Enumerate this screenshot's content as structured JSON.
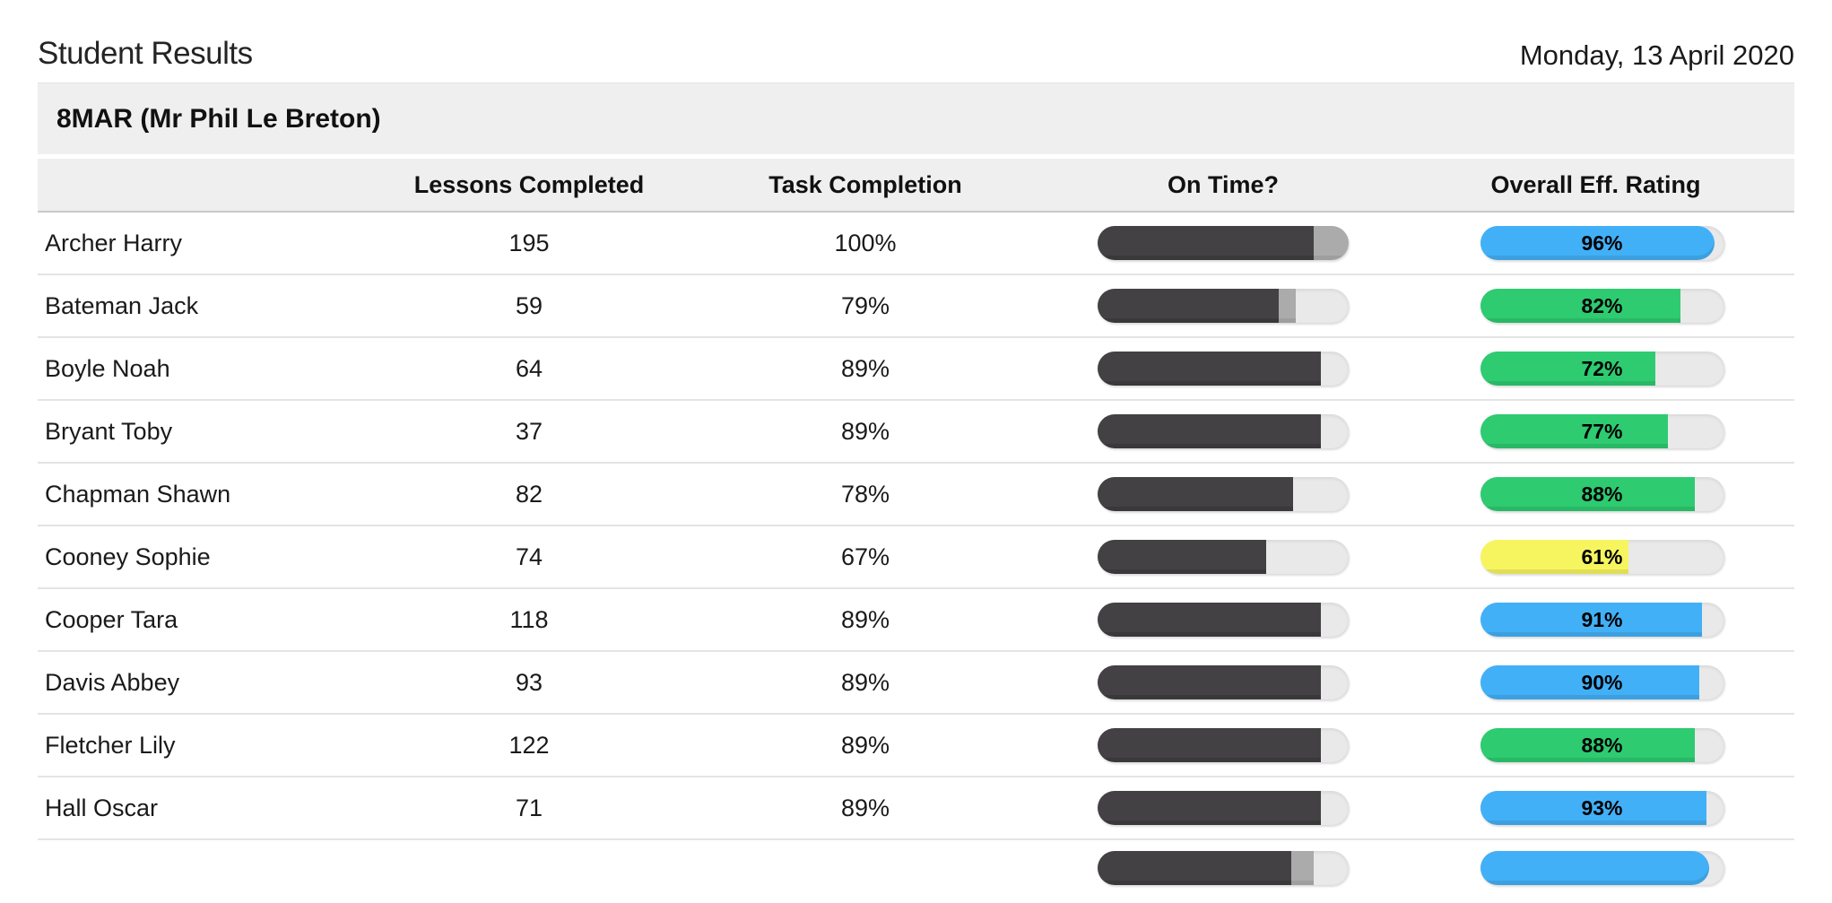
{
  "page": {
    "title": "Student Results",
    "date": "Monday, 13 April 2020"
  },
  "group": {
    "label": "8MAR (Mr Phil Le Breton)"
  },
  "table": {
    "columns": [
      "Lessons Completed",
      "Task Completion",
      "On Time?",
      "Overall Eff. Rating"
    ],
    "rows": [
      {
        "name": "Archer Harry",
        "lessons": "195",
        "task": "100%",
        "on_time_pct": 86,
        "late_pct": 14,
        "eff_pct": 96,
        "eff_label": "96%",
        "eff_color": "blue"
      },
      {
        "name": "Bateman Jack",
        "lessons": "59",
        "task": "79%",
        "on_time_pct": 72,
        "late_pct": 7,
        "eff_pct": 82,
        "eff_label": "82%",
        "eff_color": "green"
      },
      {
        "name": "Boyle Noah",
        "lessons": "64",
        "task": "89%",
        "on_time_pct": 89,
        "late_pct": 0,
        "eff_pct": 72,
        "eff_label": "72%",
        "eff_color": "green"
      },
      {
        "name": "Bryant Toby",
        "lessons": "37",
        "task": "89%",
        "on_time_pct": 89,
        "late_pct": 0,
        "eff_pct": 77,
        "eff_label": "77%",
        "eff_color": "green"
      },
      {
        "name": "Chapman Shawn",
        "lessons": "82",
        "task": "78%",
        "on_time_pct": 78,
        "late_pct": 0,
        "eff_pct": 88,
        "eff_label": "88%",
        "eff_color": "green"
      },
      {
        "name": "Cooney Sophie",
        "lessons": "74",
        "task": "67%",
        "on_time_pct": 67,
        "late_pct": 0,
        "eff_pct": 61,
        "eff_label": "61%",
        "eff_color": "yellow"
      },
      {
        "name": "Cooper Tara",
        "lessons": "118",
        "task": "89%",
        "on_time_pct": 89,
        "late_pct": 0,
        "eff_pct": 91,
        "eff_label": "91%",
        "eff_color": "blue"
      },
      {
        "name": "Davis Abbey",
        "lessons": "93",
        "task": "89%",
        "on_time_pct": 89,
        "late_pct": 0,
        "eff_pct": 90,
        "eff_label": "90%",
        "eff_color": "blue"
      },
      {
        "name": "Fletcher Lily",
        "lessons": "122",
        "task": "89%",
        "on_time_pct": 89,
        "late_pct": 0,
        "eff_pct": 88,
        "eff_label": "88%",
        "eff_color": "green"
      },
      {
        "name": "Hall Oscar",
        "lessons": "71",
        "task": "89%",
        "on_time_pct": 89,
        "late_pct": 0,
        "eff_pct": 93,
        "eff_label": "93%",
        "eff_color": "blue"
      },
      {
        "name": "",
        "lessons": "",
        "task": "",
        "on_time_pct": 77,
        "late_pct": 9,
        "eff_pct": 94,
        "eff_label": "",
        "eff_color": "blue",
        "partial": true
      }
    ]
  },
  "colors": {
    "blue": "#42b0f7",
    "green": "#2ecb71",
    "yellow": "#f7f55f",
    "on_time_fill": "#434144",
    "late_fill": "#ababab",
    "bar_track": "#e9e9e9",
    "band_bg": "#f0efef"
  }
}
